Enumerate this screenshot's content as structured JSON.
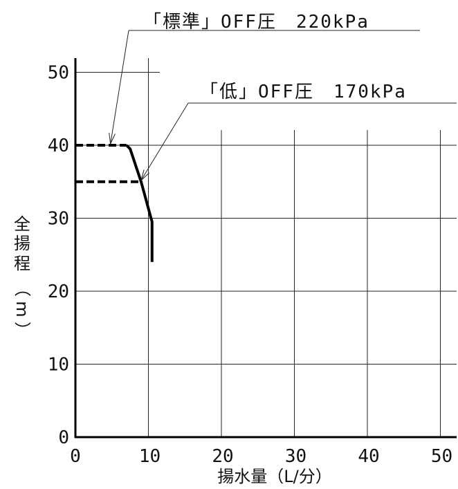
{
  "chart_data": {
    "type": "line",
    "xlabel": "揚水量（L/分）",
    "ylabel": "全揚程（m）",
    "ylabel_chars": [
      "全",
      "揚",
      "程",
      "（",
      "m",
      "）"
    ],
    "xlim": [
      0,
      52
    ],
    "ylim": [
      0,
      50
    ],
    "x_ticks": [
      "0",
      "10",
      "20",
      "30",
      "40",
      "50"
    ],
    "y_ticks": [
      "0",
      "10",
      "20",
      "30",
      "40",
      "50"
    ],
    "grid": true,
    "series": [
      {
        "name": "「標準」OFF圧 220kPa",
        "style": "dashed",
        "points": [
          [
            0,
            40
          ],
          [
            7,
            40
          ]
        ]
      },
      {
        "name": "「低」OFF圧 170kPa",
        "style": "dashed",
        "points": [
          [
            0,
            35
          ],
          [
            9,
            35
          ]
        ]
      },
      {
        "name": "",
        "style": "solid",
        "points": [
          [
            7,
            40
          ],
          [
            7.5,
            39.5
          ],
          [
            9,
            35
          ],
          [
            10.5,
            29.5
          ],
          [
            10.5,
            24
          ]
        ]
      }
    ],
    "annotations": [
      {
        "text": "「標準」OFF圧　220kPa",
        "target": [
          4.8,
          40
        ]
      },
      {
        "text": "「低」OFF圧　170kPa",
        "target": [
          9,
          35
        ]
      }
    ]
  }
}
